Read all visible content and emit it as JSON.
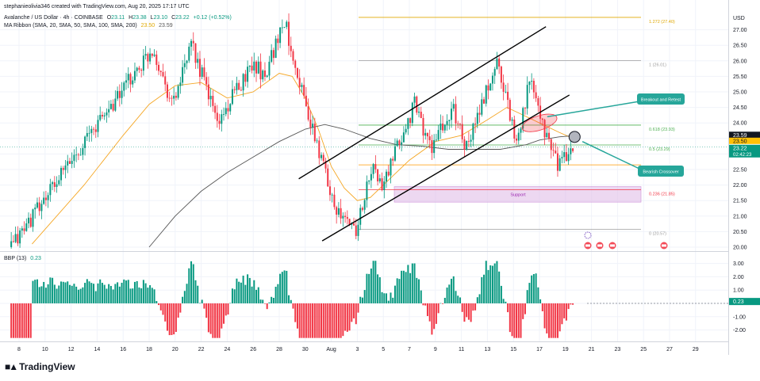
{
  "header": {
    "credit": "stephanieolivia346 created with TradingView.com, Aug 20, 2025 17:17 UTC",
    "symbol": "Avalanche / US Dollar · 4h · COINBASE",
    "ohlc": {
      "o_label": "O",
      "o": "23.11",
      "h_label": "H",
      "h": "23.38",
      "l_label": "L",
      "l": "23.10",
      "c_label": "C",
      "c": "23.22",
      "change": "+0.12 (+0.52%)"
    },
    "ma_label": "MA Ribbon (SMA, 20, SMA, 50, SMA, 100, SMA, 200)",
    "ma_val_1": "23.50",
    "ma_val_2": "23.59",
    "bbp_label": "BBP (13)",
    "bbp_value": "0.23"
  },
  "footer": {
    "brand": "TradingView"
  },
  "colors": {
    "up": "#089981",
    "down": "#f23645",
    "ma_fast": "#f5a623",
    "ma_slow": "#555555",
    "fib": "#e0a800",
    "support_fill": "#e1bee7",
    "annotation": "#26a69a",
    "trendline": "#000000"
  },
  "chart_data": [
    {
      "type": "candlestick",
      "title": "Avalanche / US Dollar · 4h · COINBASE",
      "currency": "USD",
      "y_ticks": [
        20.0,
        20.5,
        21.0,
        21.5,
        22.0,
        22.5,
        23.0,
        23.5,
        24.0,
        24.5,
        25.0,
        25.5,
        26.0,
        26.5,
        27.0
      ],
      "ylim": [
        19.9,
        27.5
      ],
      "x_ticks": [
        "8",
        "10",
        "12",
        "14",
        "16",
        "18",
        "20",
        "22",
        "24",
        "26",
        "28",
        "30",
        "Aug",
        "3",
        "5",
        "7",
        "9",
        "11",
        "13",
        "15",
        "17",
        "19",
        "21",
        "23",
        "25",
        "27",
        "29"
      ],
      "price_labels": [
        {
          "text": "23.59",
          "value": 23.59,
          "style": "dark"
        },
        {
          "text": "23.50",
          "value": 23.5,
          "style": "amber"
        },
        {
          "text": "23.22",
          "sub": "02:42:23",
          "value": 23.22,
          "style": "green"
        }
      ],
      "key_points": [
        {
          "label": "start",
          "day": 7.4,
          "price": 20.0
        },
        {
          "label": "rise",
          "day": 13.0,
          "price": 23.4
        },
        {
          "label": "peak",
          "day": 18.3,
          "price": 26.4
        },
        {
          "label": "dip",
          "day": 19.8,
          "price": 24.6
        },
        {
          "label": "peak",
          "day": 21.3,
          "price": 26.5
        },
        {
          "label": "dip",
          "day": 23.3,
          "price": 24.0
        },
        {
          "label": "high",
          "day": 26.0,
          "price": 26.0
        },
        {
          "label": "dip",
          "day": 26.8,
          "price": 25.5
        },
        {
          "label": "swing high",
          "day": 28.4,
          "price": 27.3
        },
        {
          "label": "drop",
          "day": 30.5,
          "price": 23.8
        },
        {
          "label": "low",
          "day": 32.6,
          "price": 21.0
        },
        {
          "label": "low",
          "day": 33.9,
          "price": 20.6
        },
        {
          "label": "bounce",
          "day": 35.2,
          "price": 22.6
        },
        {
          "label": "pullback",
          "day": 35.9,
          "price": 21.9
        },
        {
          "label": "rise",
          "day": 38.4,
          "price": 24.6
        },
        {
          "label": "dip",
          "day": 39.6,
          "price": 23.2
        },
        {
          "label": "rise",
          "day": 41.4,
          "price": 24.4
        },
        {
          "label": "dip",
          "day": 42.4,
          "price": 23.2
        },
        {
          "label": "high",
          "day": 44.8,
          "price": 26.0
        },
        {
          "label": "dip",
          "day": 46.2,
          "price": 23.4
        },
        {
          "label": "high",
          "day": 47.3,
          "price": 25.4
        },
        {
          "label": "retest",
          "day": 48.1,
          "price": 24.0
        },
        {
          "label": "drop",
          "day": 49.5,
          "price": 22.6
        },
        {
          "label": "now",
          "day": 50.6,
          "price": 23.2
        }
      ],
      "series": [
        {
          "name": "MA Ribbon SMA fast",
          "color": "#f5a623",
          "points": [
            [
              9.0,
              20.1
            ],
            [
              13.0,
              22.0
            ],
            [
              16.0,
              23.6
            ],
            [
              18.0,
              24.6
            ],
            [
              20.0,
              25.2
            ],
            [
              22.0,
              25.3
            ],
            [
              24.0,
              24.8
            ],
            [
              26.0,
              25.0
            ],
            [
              28.0,
              25.6
            ],
            [
              29.0,
              25.5
            ],
            [
              30.0,
              24.8
            ],
            [
              31.0,
              23.8
            ],
            [
              32.0,
              22.6
            ],
            [
              33.0,
              21.9
            ],
            [
              34.0,
              21.5
            ],
            [
              35.0,
              21.6
            ],
            [
              36.0,
              22.0
            ],
            [
              38.0,
              22.8
            ],
            [
              40.0,
              23.4
            ],
            [
              42.0,
              23.6
            ],
            [
              44.0,
              24.1
            ],
            [
              45.5,
              24.5
            ],
            [
              46.5,
              24.3
            ],
            [
              48.0,
              24.0
            ],
            [
              49.5,
              23.7
            ],
            [
              50.6,
              23.5
            ]
          ]
        },
        {
          "name": "MA Ribbon SMA slow",
          "color": "#555555",
          "points": [
            [
              18.0,
              20.0
            ],
            [
              20.0,
              21.0
            ],
            [
              22.0,
              21.8
            ],
            [
              24.0,
              22.4
            ],
            [
              26.0,
              22.9
            ],
            [
              28.0,
              23.4
            ],
            [
              30.0,
              23.8
            ],
            [
              31.5,
              23.95
            ],
            [
              33.0,
              23.8
            ],
            [
              35.0,
              23.5
            ],
            [
              37.0,
              23.3
            ],
            [
              39.0,
              23.25
            ],
            [
              41.0,
              23.15
            ],
            [
              43.0,
              23.15
            ],
            [
              45.0,
              23.15
            ],
            [
              47.0,
              23.3
            ],
            [
              48.0,
              23.45
            ],
            [
              49.5,
              23.55
            ],
            [
              50.6,
              23.59
            ]
          ]
        }
      ],
      "fibonacci": [
        {
          "label": "1.272 (27.40)",
          "ratio": "1.272",
          "value": 27.4
        },
        {
          "label": "1 (26.01)",
          "ratio": "1",
          "value": 26.01
        },
        {
          "label": "0.618 (23.93)",
          "ratio": "0.618",
          "value": 23.93
        },
        {
          "label": "0.5 (23.29)",
          "ratio": "0.5",
          "value": 23.29
        },
        {
          "label": "0.382 (22.65)",
          "ratio": "0.382",
          "value": 22.65
        },
        {
          "label": "0.236 (21.85)",
          "ratio": "0.236",
          "value": 21.85
        },
        {
          "label": "0 (20.57)",
          "ratio": "0",
          "value": 20.57
        }
      ],
      "support_zone": {
        "label": "Support",
        "from": 21.45,
        "to": 21.95
      },
      "annotations": [
        {
          "text": "Breakout and Retest"
        },
        {
          "text": "Bearish Crossover"
        }
      ]
    },
    {
      "type": "bar",
      "title": "BBP (13)",
      "y_ticks": [
        -2.0,
        -1.0,
        0.0,
        1.0,
        2.0,
        3.0
      ],
      "ylim": [
        -2.9,
        3.3
      ],
      "current": 0.23,
      "zero_line": 0.0
    }
  ]
}
